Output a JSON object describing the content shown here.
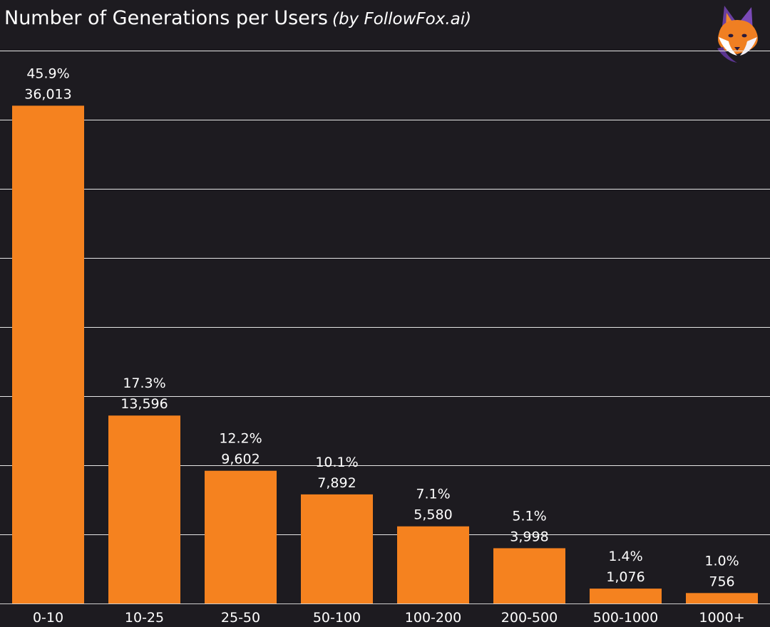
{
  "header": {
    "title": "Number of Generations per Users",
    "subtitle": "(by FollowFox.ai)"
  },
  "logo": {
    "icon": "fox-logo-icon"
  },
  "colors": {
    "background": "#1d1b20",
    "bar": "#f5821f",
    "grid": "#e6e6e6",
    "text": "#ffffff"
  },
  "chart_data": {
    "type": "bar",
    "title": "Number of Generations per Users",
    "subtitle": "(by FollowFox.ai)",
    "xlabel": "",
    "ylabel": "",
    "categories": [
      "0-10",
      "10-25",
      "25-50",
      "50-100",
      "100-200",
      "200-500",
      "500-1000",
      "1000+"
    ],
    "values": [
      36013,
      13596,
      9602,
      7892,
      5580,
      3998,
      1076,
      756
    ],
    "value_labels": [
      "36,013",
      "13,596",
      "9,602",
      "7,892",
      "5,580",
      "3,998",
      "1,076",
      "756"
    ],
    "percent_labels": [
      "45.9%",
      "17.3%",
      "12.2%",
      "10.1%",
      "7.1%",
      "5.1%",
      "1.4%",
      "1.0%"
    ],
    "ylim": [
      0,
      40000
    ],
    "grid": true,
    "legend": "none"
  }
}
